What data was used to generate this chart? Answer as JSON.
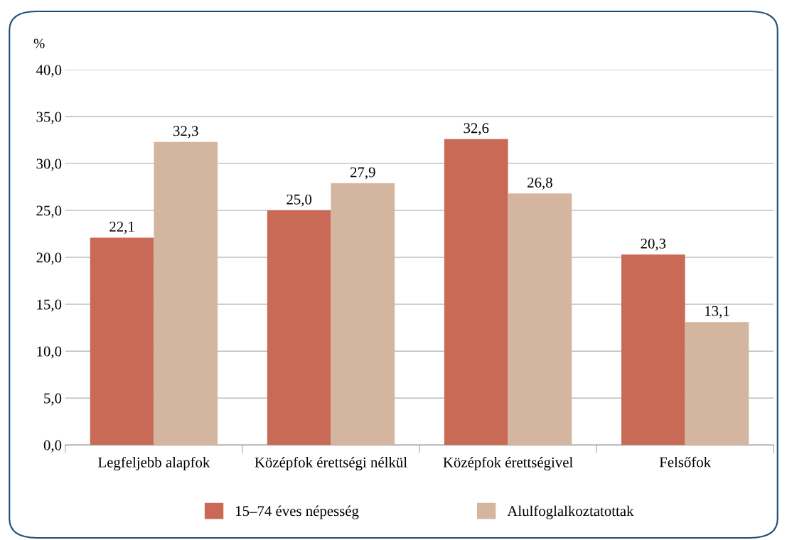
{
  "chart_data": {
    "type": "bar",
    "ylabel": "%",
    "categories": [
      "Legfeljebb alapfok",
      "Középfok érettségi nélkül",
      "Középfok érettségivel",
      "Felsőfok"
    ],
    "series": [
      {
        "name": "15–74 éves népesség",
        "color": "#c96a56",
        "values": [
          22.1,
          25.0,
          32.6,
          20.3
        ],
        "value_labels": [
          "22,1",
          "25,0",
          "32,6",
          "20,3"
        ]
      },
      {
        "name": "Alulfoglalkoztatottak",
        "color": "#d4b5a0",
        "values": [
          32.3,
          27.9,
          26.8,
          13.1
        ],
        "value_labels": [
          "32,3",
          "27,9",
          "26,8",
          "13,1"
        ]
      }
    ],
    "ylim": [
      0,
      40
    ],
    "yticks": [
      {
        "value": 0,
        "label": "0,0"
      },
      {
        "value": 5,
        "label": "5,0"
      },
      {
        "value": 10,
        "label": "10,0"
      },
      {
        "value": 15,
        "label": "15,0"
      },
      {
        "value": 20,
        "label": "20,0"
      },
      {
        "value": 25,
        "label": "25,0"
      },
      {
        "value": 30,
        "label": "30,0"
      },
      {
        "value": 35,
        "label": "35,0"
      },
      {
        "value": 40,
        "label": "40,0"
      }
    ],
    "grid": "y",
    "legend": "bottom"
  }
}
